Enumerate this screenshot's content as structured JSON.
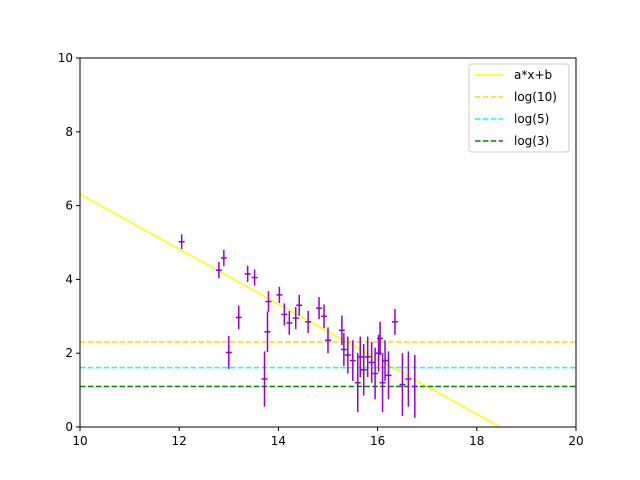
{
  "chart_data": {
    "type": "scatter",
    "title": "",
    "xlabel": "",
    "ylabel": "",
    "xlim": [
      10,
      20
    ],
    "ylim": [
      0,
      10
    ],
    "x_ticks": [
      10,
      12,
      14,
      16,
      18,
      20
    ],
    "y_ticks": [
      0,
      2,
      4,
      6,
      8,
      10
    ],
    "x_tick_labels": [
      "10",
      "12",
      "14",
      "16",
      "18",
      "20"
    ],
    "y_tick_labels": [
      "0",
      "2",
      "4",
      "6",
      "8",
      "10"
    ],
    "grid": false,
    "legend_position": "top-right",
    "points": {
      "color": "#9400d3",
      "data": [
        {
          "x": 12.05,
          "y": 5.02,
          "xerr": 0.06,
          "yerr": 0.2
        },
        {
          "x": 12.8,
          "y": 4.25,
          "xerr": 0.06,
          "yerr": 0.22
        },
        {
          "x": 12.9,
          "y": 4.58,
          "xerr": 0.06,
          "yerr": 0.22
        },
        {
          "x": 13.0,
          "y": 2.02,
          "xerr": 0.06,
          "yerr": 0.45
        },
        {
          "x": 13.2,
          "y": 2.97,
          "xerr": 0.06,
          "yerr": 0.32
        },
        {
          "x": 13.38,
          "y": 4.15,
          "xerr": 0.06,
          "yerr": 0.22
        },
        {
          "x": 13.52,
          "y": 4.05,
          "xerr": 0.06,
          "yerr": 0.22
        },
        {
          "x": 13.72,
          "y": 1.3,
          "xerr": 0.06,
          "yerr": 0.75
        },
        {
          "x": 13.78,
          "y": 2.58,
          "xerr": 0.06,
          "yerr": 0.55
        },
        {
          "x": 13.8,
          "y": 3.4,
          "xerr": 0.06,
          "yerr": 0.28
        },
        {
          "x": 14.02,
          "y": 3.58,
          "xerr": 0.06,
          "yerr": 0.22
        },
        {
          "x": 14.12,
          "y": 3.05,
          "xerr": 0.06,
          "yerr": 0.3
        },
        {
          "x": 14.22,
          "y": 2.82,
          "xerr": 0.06,
          "yerr": 0.32
        },
        {
          "x": 14.35,
          "y": 2.95,
          "xerr": 0.06,
          "yerr": 0.3
        },
        {
          "x": 14.42,
          "y": 3.3,
          "xerr": 0.06,
          "yerr": 0.28
        },
        {
          "x": 14.6,
          "y": 2.85,
          "xerr": 0.06,
          "yerr": 0.3
        },
        {
          "x": 14.82,
          "y": 3.22,
          "xerr": 0.06,
          "yerr": 0.3
        },
        {
          "x": 14.92,
          "y": 3.0,
          "xerr": 0.06,
          "yerr": 0.32
        },
        {
          "x": 15.0,
          "y": 2.35,
          "xerr": 0.06,
          "yerr": 0.35
        },
        {
          "x": 15.28,
          "y": 2.62,
          "xerr": 0.06,
          "yerr": 0.4
        },
        {
          "x": 15.32,
          "y": 2.1,
          "xerr": 0.06,
          "yerr": 0.45
        },
        {
          "x": 15.4,
          "y": 1.95,
          "xerr": 0.06,
          "yerr": 0.5
        },
        {
          "x": 15.5,
          "y": 1.8,
          "xerr": 0.06,
          "yerr": 0.55
        },
        {
          "x": 15.6,
          "y": 1.2,
          "xerr": 0.06,
          "yerr": 0.8
        },
        {
          "x": 15.65,
          "y": 1.9,
          "xerr": 0.06,
          "yerr": 0.55
        },
        {
          "x": 15.72,
          "y": 1.55,
          "xerr": 0.06,
          "yerr": 0.7
        },
        {
          "x": 15.8,
          "y": 1.9,
          "xerr": 0.06,
          "yerr": 0.55
        },
        {
          "x": 15.88,
          "y": 1.75,
          "xerr": 0.06,
          "yerr": 0.55
        },
        {
          "x": 15.95,
          "y": 1.45,
          "xerr": 0.06,
          "yerr": 0.7
        },
        {
          "x": 16.02,
          "y": 2.0,
          "xerr": 0.06,
          "yerr": 0.5
        },
        {
          "x": 16.05,
          "y": 2.4,
          "xerr": 0.06,
          "yerr": 0.45
        },
        {
          "x": 16.1,
          "y": 1.2,
          "xerr": 0.06,
          "yerr": 0.8
        },
        {
          "x": 16.15,
          "y": 1.8,
          "xerr": 0.06,
          "yerr": 0.55
        },
        {
          "x": 16.22,
          "y": 1.4,
          "xerr": 0.06,
          "yerr": 0.65
        },
        {
          "x": 16.35,
          "y": 2.85,
          "xerr": 0.06,
          "yerr": 0.35
        },
        {
          "x": 16.5,
          "y": 1.15,
          "xerr": 0.06,
          "yerr": 0.85
        },
        {
          "x": 16.62,
          "y": 1.3,
          "xerr": 0.06,
          "yerr": 0.75
        },
        {
          "x": 16.75,
          "y": 1.1,
          "xerr": 0.06,
          "yerr": 0.85
        }
      ]
    },
    "lines": [
      {
        "name": "a*x+b",
        "kind": "linear",
        "slope": -0.745,
        "intercept": 13.76,
        "color": "#ffff00",
        "style": "solid"
      },
      {
        "name": "log(10)",
        "kind": "horizontal",
        "y": 2.302585,
        "color": "#ffd700",
        "style": "dashed"
      },
      {
        "name": "log(5)",
        "kind": "horizontal",
        "y": 1.609438,
        "color": "#00ffff",
        "style": "dashed"
      },
      {
        "name": "log(3)",
        "kind": "horizontal",
        "y": 1.098612,
        "color": "#008000",
        "style": "dashed"
      }
    ]
  }
}
